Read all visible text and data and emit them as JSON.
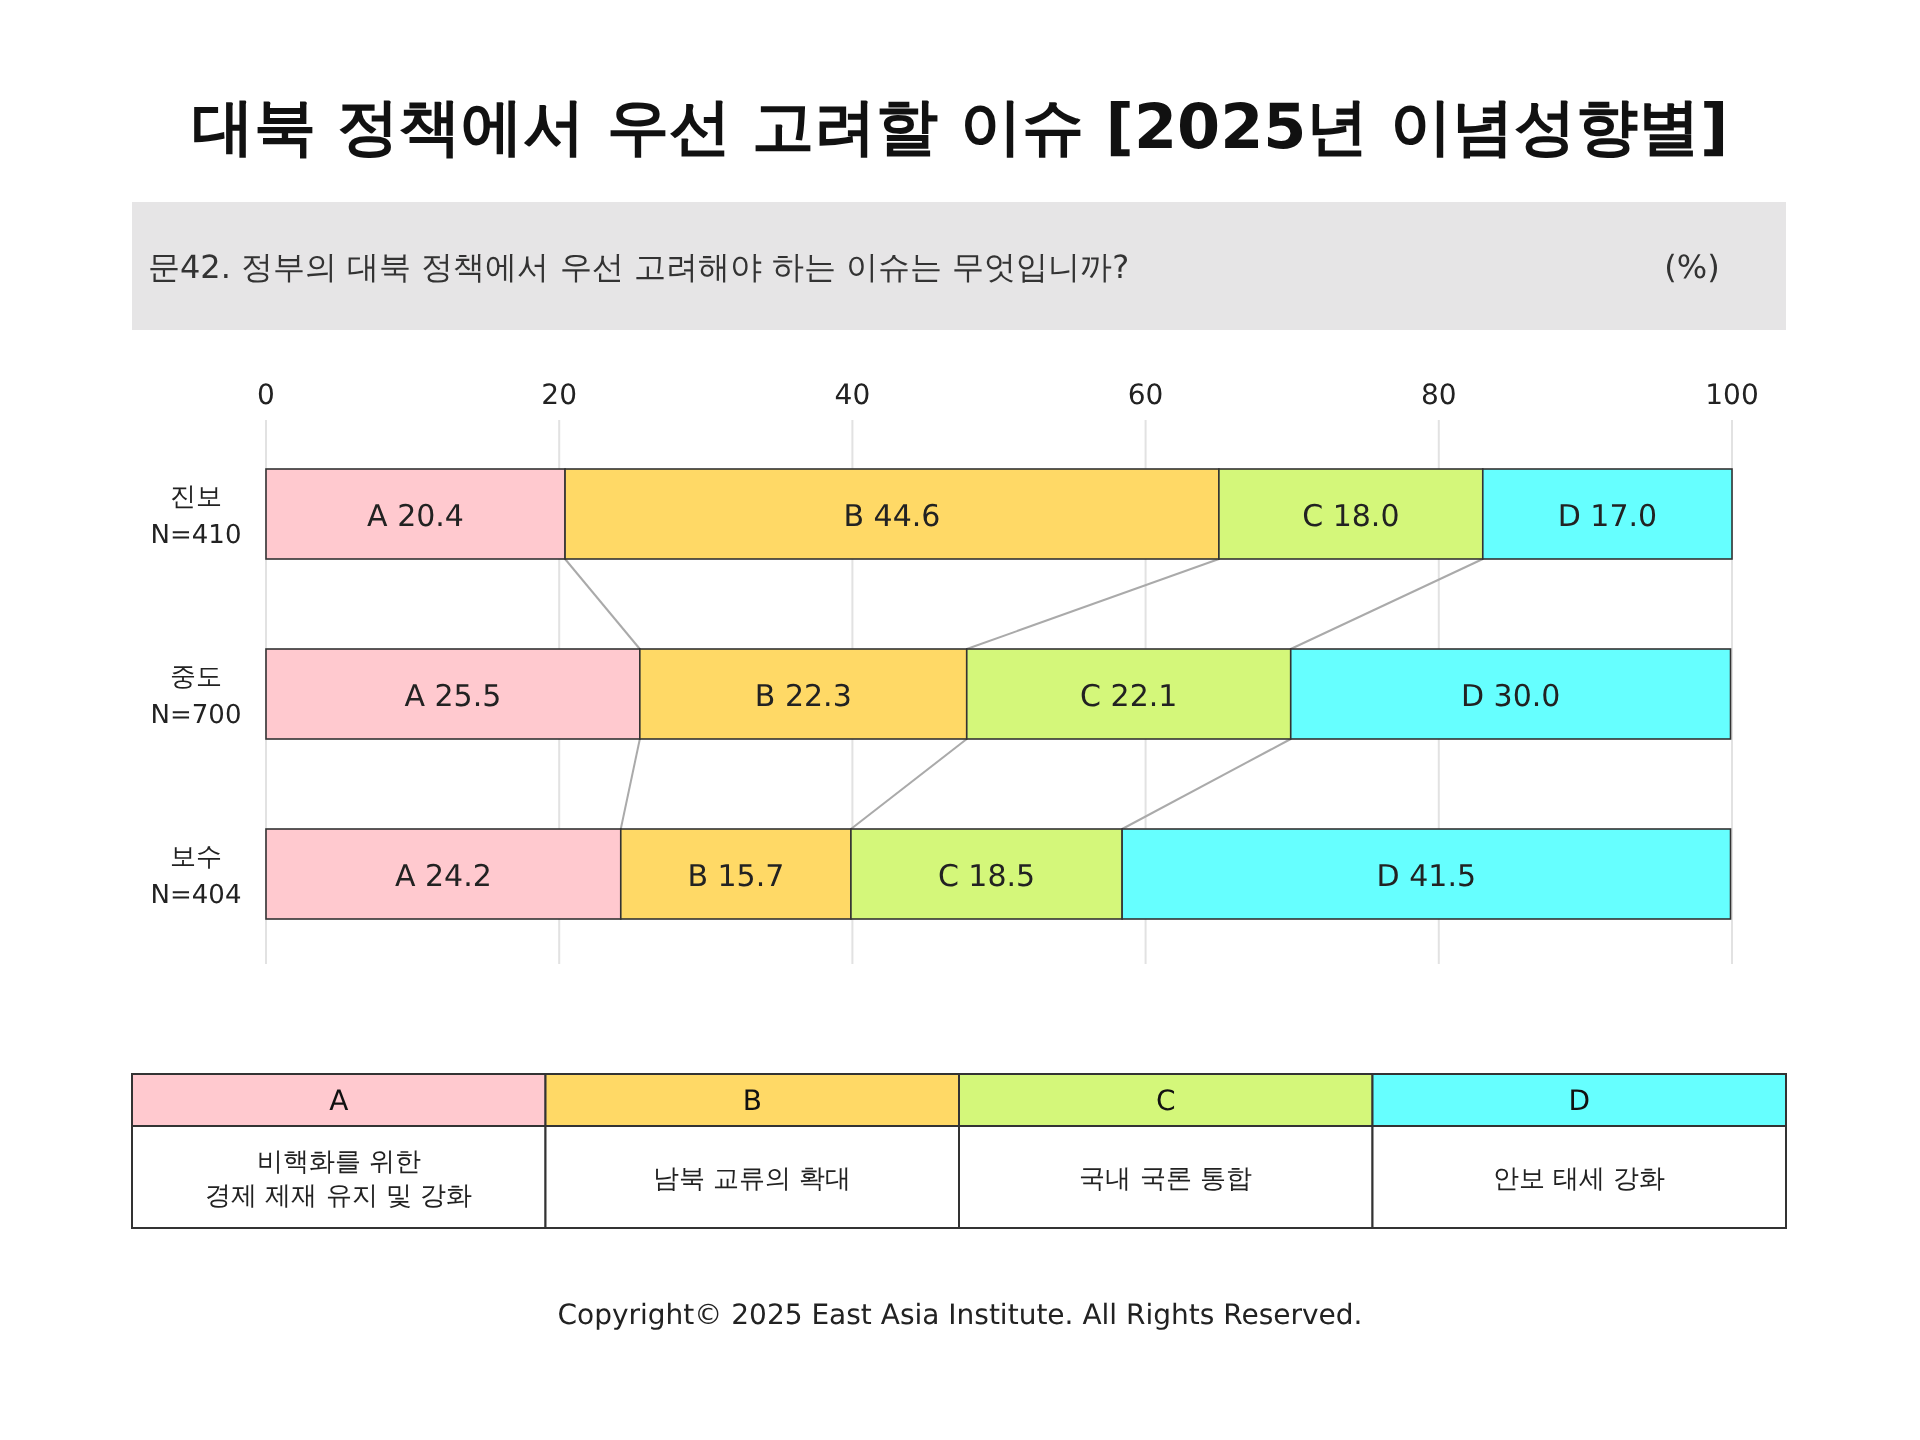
{
  "chart_data": {
    "type": "bar",
    "orientation": "horizontal",
    "stacked": true,
    "title": "대북 정책에서 우선 고려할 이슈 [2025년 이념성향별]",
    "subtitle": "문42. 정부의 대북 정책에서 우선 고려해야 하는 이슈는 무엇입니까?",
    "xlabel": "(%)",
    "categories": [
      "진보\nN=410",
      "중도\nN=700",
      "보수\nN=404"
    ],
    "series": [
      {
        "name": "A",
        "color": "#ffc9cf",
        "values": [
          20.4,
          25.5,
          24.2
        ],
        "value_labels": [
          "A 20.4",
          "A 25.5",
          "A 24.2"
        ]
      },
      {
        "name": "B",
        "color": "#ffd966",
        "values": [
          44.6,
          22.3,
          15.7
        ],
        "value_labels": [
          "B 44.6",
          "B 22.3",
          "B 15.7"
        ]
      },
      {
        "name": "C",
        "color": "#d4f77a",
        "values": [
          18.0,
          22.1,
          18.5
        ],
        "value_labels": [
          "C 18.0",
          "C 22.1",
          "C 18.5"
        ]
      },
      {
        "name": "D",
        "color": "#66ffff",
        "values": [
          17.0,
          30.0,
          41.5
        ],
        "value_labels": [
          "D 17.0",
          "D 30.0",
          "D 41.5"
        ]
      }
    ],
    "xlim": [
      0,
      100
    ],
    "xticks": [
      0,
      20,
      40,
      60,
      80,
      100
    ],
    "grid": "x",
    "legend": "bottom",
    "annotations": [
      "비핵화를 위한\n경제 제재 유지 및 강화",
      "남북 교류의 확대",
      "국내 국론 통합",
      "안보 태세 강화",
      "Copyright© 2025 East Asia Institute. All Rights Reserved."
    ]
  }
}
